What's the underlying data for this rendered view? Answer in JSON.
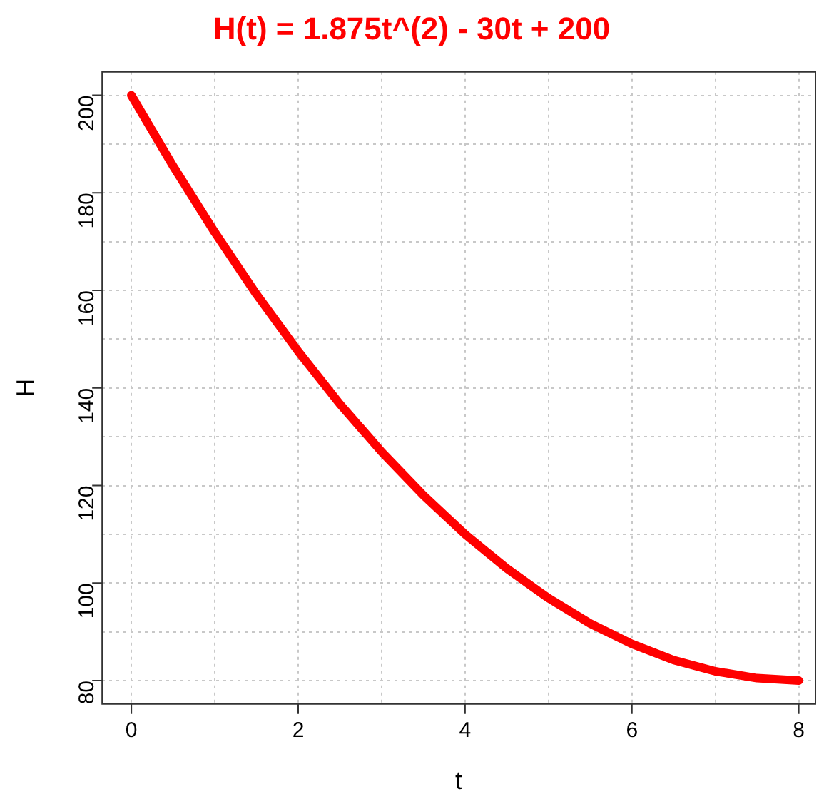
{
  "chart_data": {
    "type": "line",
    "title": "H(t) = 1.875t^(2) - 30t + 200",
    "xlabel": "t",
    "ylabel": "H",
    "x": [
      0,
      0.5,
      1,
      1.5,
      2,
      2.5,
      3,
      3.5,
      4,
      4.5,
      5,
      5.5,
      6,
      6.5,
      7,
      7.5,
      8
    ],
    "series": [
      {
        "color": "#ff0000",
        "values": [
          200,
          185.5,
          171.9,
          159.2,
          147.5,
          136.7,
          126.9,
          118,
          110,
          103,
          96.9,
          91.7,
          87.5,
          84.2,
          81.9,
          80.5,
          80
        ]
      }
    ],
    "xlim": [
      -0.35,
      8.2
    ],
    "ylim": [
      75.2,
      204.8
    ],
    "xticks": [
      0,
      {
        "value": 1,
        "label": null
      },
      2,
      {
        "value": 3,
        "label": null
      },
      4,
      {
        "value": 5,
        "label": null
      },
      6,
      {
        "value": 7,
        "label": null
      },
      8
    ],
    "yticks": [
      80,
      {
        "value": 90,
        "label": null
      },
      100,
      {
        "value": 110,
        "label": null
      },
      120,
      {
        "value": 130,
        "label": null
      },
      140,
      {
        "value": 150,
        "label": null
      },
      160,
      {
        "value": 170,
        "label": null
      },
      180,
      {
        "value": 190,
        "label": null
      },
      200
    ],
    "grid": true,
    "marker": "none",
    "line_style": "solid"
  }
}
